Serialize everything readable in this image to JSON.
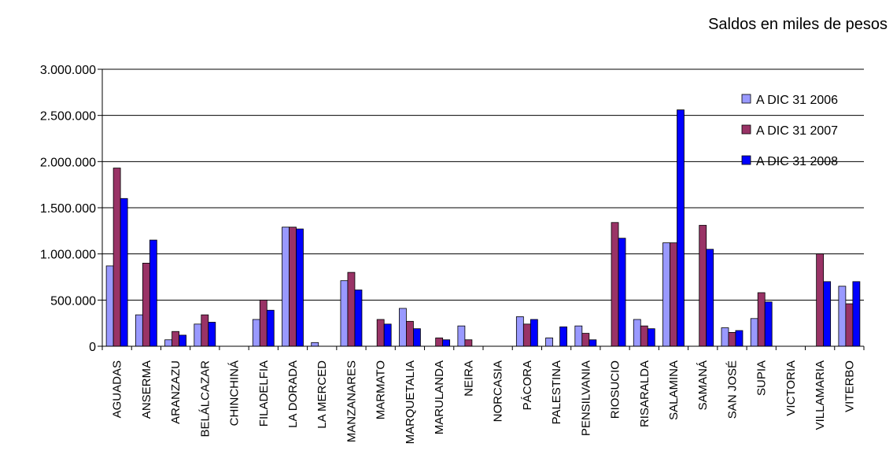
{
  "unit_label": "Saldos en miles de pesos",
  "chart_data": {
    "type": "bar",
    "categories": [
      "AGUADAS",
      "ANSERMA",
      "ARANZAZU",
      "BELÁLCAZAR",
      "CHINCHINÁ",
      "FILADELFIA",
      "LA DORADA",
      "LA MERCED",
      "MANZANARES",
      "MARMATO",
      "MARQUETALIA",
      "MARULANDA",
      "NEIRA",
      "NORCASIA",
      "PÁCORA",
      "PALESTINA",
      "PENSILVANIA",
      "RIOSUCIO",
      "RISARALDA",
      "SALAMINA",
      "SAMANÁ",
      "SAN JOSÉ",
      "SUPIA",
      "VICTORIA",
      "VILLAMARIA",
      "VITERBO"
    ],
    "series": [
      {
        "name": "A DIC 31 2006",
        "color": "#9999ff",
        "values": [
          870000,
          340000,
          70000,
          240000,
          0,
          290000,
          1290000,
          40000,
          710000,
          0,
          410000,
          0,
          220000,
          0,
          320000,
          90000,
          220000,
          0,
          290000,
          1120000,
          0,
          200000,
          300000,
          0,
          0,
          650000
        ]
      },
      {
        "name": "A DIC 31 2007",
        "color": "#993366",
        "values": [
          1930000,
          900000,
          160000,
          340000,
          0,
          500000,
          1290000,
          0,
          800000,
          290000,
          270000,
          90000,
          70000,
          0,
          240000,
          0,
          140000,
          1340000,
          220000,
          1120000,
          1310000,
          150000,
          580000,
          0,
          1000000,
          460000
        ]
      },
      {
        "name": "A DIC 31 2008",
        "color": "#0000ff",
        "values": [
          1600000,
          1150000,
          120000,
          260000,
          0,
          390000,
          1270000,
          0,
          610000,
          240000,
          190000,
          70000,
          0,
          0,
          290000,
          210000,
          70000,
          1170000,
          190000,
          2560000,
          1050000,
          170000,
          480000,
          0,
          700000,
          700000
        ]
      }
    ],
    "ylim": [
      0,
      3000000
    ],
    "yticks": [
      0,
      500000,
      1000000,
      1500000,
      2000000,
      2500000,
      3000000
    ],
    "ytick_labels": [
      "0",
      "500.000",
      "1.000.000",
      "1.500.000",
      "2.000.000",
      "2.500.000",
      "3.000.000"
    ],
    "grid": true,
    "legend_position": "top-right"
  }
}
